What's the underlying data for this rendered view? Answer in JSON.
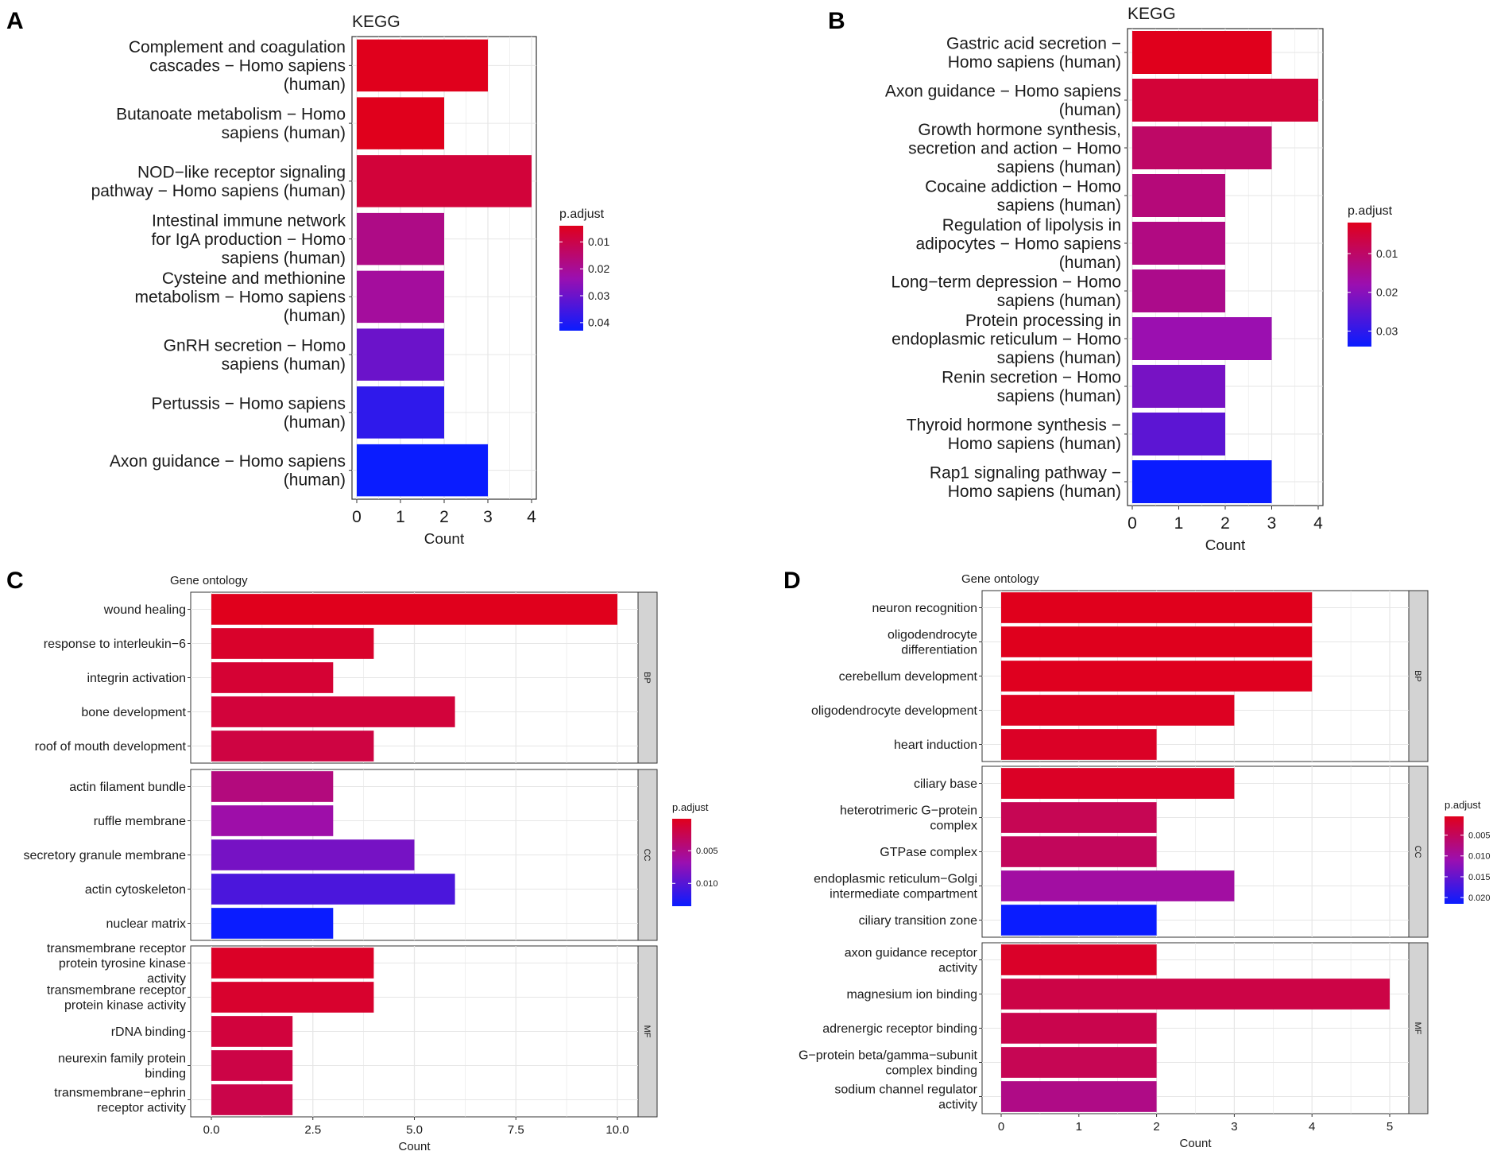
{
  "panel_letters": [
    "A",
    "B",
    "C",
    "D"
  ],
  "colors": {
    "low_p": "#e0001c",
    "mid_p": "#9b0fb0",
    "high_p": "#0a1cff",
    "grid": "#e6e6e6",
    "strip": "#d3d3d3"
  },
  "chart_data": [
    {
      "type": "bar",
      "panel": "A",
      "title": "KEGG",
      "xlabel": "Count",
      "xlim": [
        0,
        4
      ],
      "xticks": [
        0,
        1,
        2,
        3,
        4
      ],
      "legend": {
        "title": "p.adjust",
        "ticks": [
          "0.01",
          "0.02",
          "0.03",
          "0.04"
        ],
        "placement": "right"
      },
      "categories": [
        [
          "Complement and coagulation",
          "cascades − Homo sapiens",
          "(human)"
        ],
        [
          "Butanoate metabolism − Homo",
          "sapiens (human)"
        ],
        [
          "NOD−like receptor signaling",
          "pathway − Homo sapiens (human)"
        ],
        [
          "Intestinal immune network",
          "for IgA production − Homo",
          "sapiens (human)"
        ],
        [
          "Cysteine and methionine",
          "metabolism − Homo sapiens",
          "(human)"
        ],
        [
          "GnRH secretion − Homo",
          "sapiens (human)"
        ],
        [
          "Pertussis − Homo sapiens",
          "(human)"
        ],
        [
          "Axon guidance − Homo sapiens",
          "(human)"
        ]
      ],
      "values": [
        3,
        2,
        4,
        2,
        2,
        2,
        2,
        3
      ],
      "p_adjust": [
        0.004,
        0.004,
        0.008,
        0.018,
        0.021,
        0.03,
        0.038,
        0.043
      ]
    },
    {
      "type": "bar",
      "panel": "B",
      "title": "KEGG",
      "xlabel": "Count",
      "xlim": [
        0,
        4
      ],
      "xticks": [
        0,
        1,
        2,
        3,
        4
      ],
      "legend": {
        "title": "p.adjust",
        "ticks": [
          "0.01",
          "0.02",
          "0.03"
        ],
        "placement": "right"
      },
      "categories": [
        [
          "Gastric acid secretion −",
          "Homo sapiens (human)"
        ],
        [
          "Axon guidance − Homo sapiens",
          "(human)"
        ],
        [
          "Growth hormone synthesis,",
          "secretion and action − Homo",
          "sapiens (human)"
        ],
        [
          "Cocaine addiction − Homo",
          "sapiens (human)"
        ],
        [
          "Regulation of lipolysis in",
          "adipocytes − Homo sapiens",
          "(human)"
        ],
        [
          "Long−term depression − Homo",
          "sapiens (human)"
        ],
        [
          "Protein processing in",
          "endoplasmic reticulum − Homo",
          "sapiens (human)"
        ],
        [
          "Renin secretion − Homo",
          "sapiens (human)"
        ],
        [
          "Thyroid hormone synthesis −",
          "Homo sapiens (human)"
        ],
        [
          "Rap1 signaling pathway −",
          "Homo sapiens (human)"
        ]
      ],
      "values": [
        3,
        4,
        3,
        2,
        2,
        2,
        3,
        2,
        2,
        3
      ],
      "p_adjust": [
        0.002,
        0.005,
        0.01,
        0.012,
        0.013,
        0.014,
        0.018,
        0.022,
        0.025,
        0.034
      ]
    },
    {
      "type": "bar",
      "panel": "C",
      "title": "Gene ontology",
      "xlabel": "Count",
      "xlim": [
        0,
        10
      ],
      "xticks": [
        "0.0",
        "2.5",
        "5.0",
        "7.5",
        "10.0"
      ],
      "legend": {
        "title": "p.adjust",
        "ticks": [
          "0.005",
          "0.010"
        ],
        "placement": "right"
      },
      "facets": [
        {
          "label": "BP",
          "categories": [
            [
              "wound healing"
            ],
            [
              "response to interleukin−6"
            ],
            [
              "integrin activation"
            ],
            [
              "bone development"
            ],
            [
              "roof of mouth development"
            ]
          ],
          "values": [
            10,
            4,
            3,
            6,
            4
          ],
          "p_adjust": [
            0.0001,
            0.0008,
            0.0012,
            0.0015,
            0.0018
          ]
        },
        {
          "label": "CC",
          "categories": [
            [
              "actin filament bundle"
            ],
            [
              "ruffle membrane"
            ],
            [
              "secretory granule membrane"
            ],
            [
              "actin cytoskeleton"
            ],
            [
              "nuclear matrix"
            ]
          ],
          "values": [
            3,
            3,
            5,
            6,
            3
          ],
          "p_adjust": [
            0.0045,
            0.0065,
            0.0085,
            0.0105,
            0.0135
          ]
        },
        {
          "label": "MF",
          "categories": [
            [
              "transmembrane receptor",
              "protein tyrosine kinase",
              "activity"
            ],
            [
              "transmembrane receptor",
              "protein kinase activity"
            ],
            [
              "rDNA binding"
            ],
            [
              "neurexin family protein",
              "binding"
            ],
            [
              "transmembrane−ephrin",
              "receptor activity"
            ]
          ],
          "values": [
            4,
            4,
            2,
            2,
            2
          ],
          "p_adjust": [
            0.0006,
            0.0009,
            0.0016,
            0.002,
            0.0022
          ]
        }
      ]
    },
    {
      "type": "bar",
      "panel": "D",
      "title": "Gene ontology",
      "xlabel": "Count",
      "xlim": [
        0,
        5
      ],
      "xticks": [
        0,
        1,
        2,
        3,
        4,
        5
      ],
      "legend": {
        "title": "p.adjust",
        "ticks": [
          "0.005",
          "0.010",
          "0.015",
          "0.020"
        ],
        "placement": "right"
      },
      "facets": [
        {
          "label": "BP",
          "categories": [
            [
              "neuron recognition"
            ],
            [
              "oligodendrocyte",
              "differentiation"
            ],
            [
              "cerebellum development"
            ],
            [
              "oligodendrocyte development"
            ],
            [
              "heart induction"
            ]
          ],
          "values": [
            4,
            4,
            4,
            3,
            2
          ],
          "p_adjust": [
            0.0005,
            0.0006,
            0.0007,
            0.0009,
            0.0012
          ]
        },
        {
          "label": "CC",
          "categories": [
            [
              "ciliary base"
            ],
            [
              "heterotrimeric G−protein",
              "complex"
            ],
            [
              "GTPase complex"
            ],
            [
              "endoplasmic reticulum−Golgi",
              "intermediate compartment"
            ],
            [
              "ciliary transition zone"
            ]
          ],
          "values": [
            3,
            2,
            2,
            3,
            2
          ],
          "p_adjust": [
            0.0012,
            0.0045,
            0.005,
            0.01,
            0.0215
          ]
        },
        {
          "label": "MF",
          "categories": [
            [
              "axon guidance receptor",
              "activity"
            ],
            [
              "magnesium ion binding"
            ],
            [
              "adrenergic receptor binding"
            ],
            [
              "G−protein beta/gamma−subunit",
              "complex binding"
            ],
            [
              "sodium channel regulator",
              "activity"
            ]
          ],
          "values": [
            2,
            5,
            2,
            2,
            2
          ],
          "p_adjust": [
            0.0014,
            0.0035,
            0.004,
            0.0045,
            0.008
          ]
        }
      ]
    }
  ]
}
